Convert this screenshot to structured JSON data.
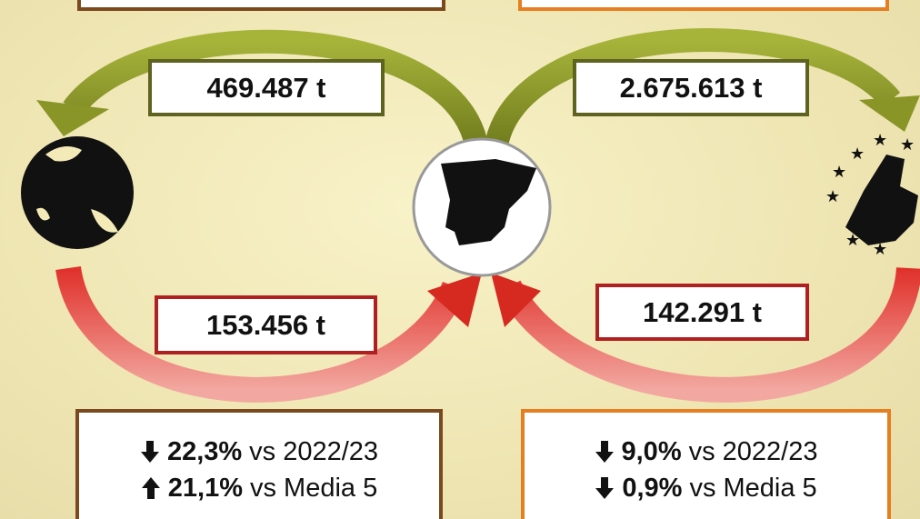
{
  "flows": [
    {
      "label": "469.487 t"
    },
    {
      "label": "2.675.613 t"
    },
    {
      "label": "153.456 t"
    },
    {
      "label": "142.291 t"
    }
  ],
  "stats": [
    [
      {
        "direction": "down",
        "value": "22,3%",
        "text": "vs 2022/23"
      },
      {
        "direction": "up",
        "value": "21,1%",
        "text": "vs Media 5"
      }
    ],
    [
      {
        "direction": "down",
        "value": "9,0%",
        "text": "vs 2022/23"
      },
      {
        "direction": "down",
        "value": "0,9%",
        "text": "vs Media 5"
      }
    ]
  ]
}
